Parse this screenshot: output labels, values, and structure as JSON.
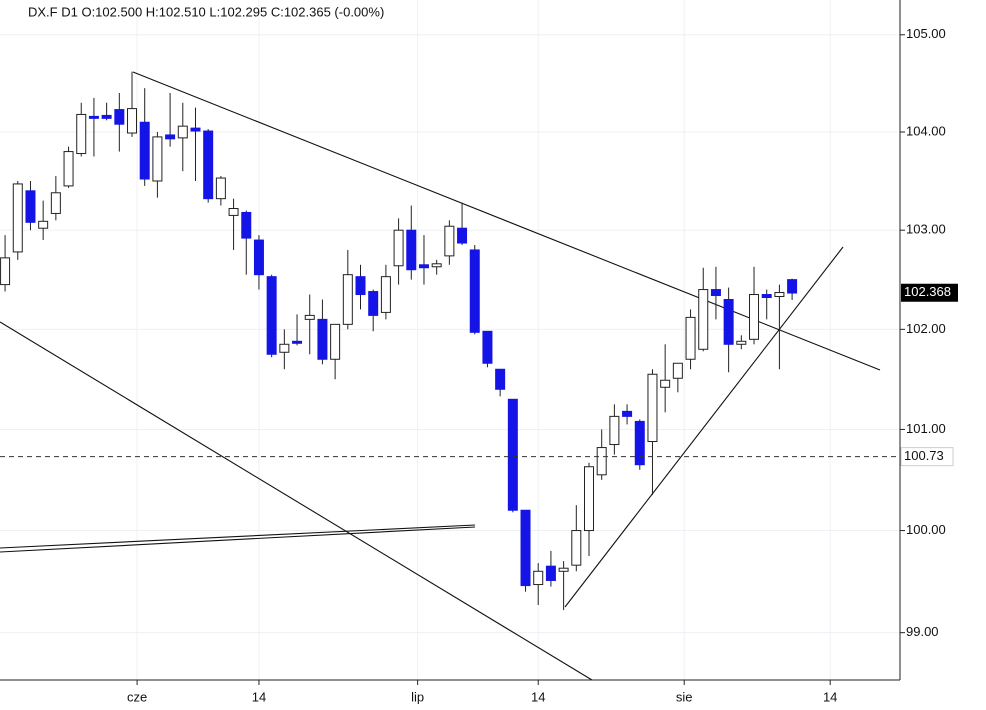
{
  "chart_data": {
    "type": "candlestick",
    "title": "DX.F  D1  O:102.500  H:102.510  L:102.295  C:102.365  (-0.00%)",
    "log_scale": true,
    "grid": true,
    "color": "#1414e6",
    "categories": [
      null,
      null,
      null,
      null,
      null,
      null,
      null,
      null,
      null,
      null,
      null,
      null,
      null,
      null,
      null,
      null,
      null,
      null,
      null,
      null,
      null,
      null,
      null,
      null,
      null,
      null,
      null,
      null,
      null,
      null,
      null,
      null,
      null,
      null,
      null,
      null,
      null,
      null,
      null,
      null,
      null,
      null,
      null,
      null,
      null,
      null,
      null,
      null,
      null,
      null,
      null,
      null,
      null,
      null,
      null,
      null,
      null,
      null,
      null,
      null,
      null,
      null,
      null
    ],
    "open": [
      102.45,
      102.78,
      103.4,
      103.02,
      103.17,
      103.45,
      103.78,
      104.16,
      104.17,
      104.23,
      103.99,
      104.1,
      103.5,
      103.97,
      103.94,
      104.04,
      104.01,
      103.32,
      103.15,
      103.18,
      102.9,
      102.53,
      101.77,
      101.88,
      102.1,
      102.1,
      101.7,
      102.05,
      102.53,
      102.38,
      102.17,
      102.64,
      103.0,
      102.65,
      102.63,
      102.74,
      103.02,
      102.8,
      101.98,
      101.6,
      101.3,
      100.2,
      99.47,
      99.65,
      99.6,
      99.66,
      100.0,
      100.55,
      100.85,
      101.18,
      101.08,
      100.88,
      101.42,
      101.51,
      101.7,
      101.8,
      102.4,
      102.3,
      101.85,
      101.9,
      102.35,
      102.33,
      102.5
    ],
    "high": [
      102.95,
      103.5,
      103.5,
      103.3,
      103.55,
      103.85,
      104.3,
      104.35,
      104.3,
      104.4,
      104.62,
      104.45,
      104.0,
      104.4,
      104.3,
      104.25,
      104.03,
      103.55,
      103.32,
      103.2,
      102.95,
      102.55,
      102.0,
      102.15,
      102.35,
      102.3,
      102.05,
      102.8,
      102.65,
      102.4,
      102.65,
      103.12,
      103.25,
      102.95,
      102.7,
      103.1,
      103.28,
      102.85,
      101.98,
      101.6,
      101.3,
      100.2,
      99.68,
      99.8,
      99.7,
      100.25,
      100.67,
      101.0,
      101.25,
      101.25,
      101.1,
      101.6,
      101.85,
      101.66,
      102.2,
      102.62,
      102.63,
      102.42,
      101.94,
      102.63,
      102.4,
      102.45,
      102.51
    ],
    "low": [
      102.38,
      102.7,
      103.0,
      102.9,
      103.1,
      103.43,
      103.75,
      103.75,
      104.12,
      103.8,
      103.95,
      103.45,
      103.33,
      103.85,
      103.6,
      103.5,
      103.28,
      103.25,
      102.8,
      102.55,
      102.4,
      101.72,
      101.6,
      101.84,
      101.75,
      101.65,
      101.5,
      102.0,
      102.2,
      101.98,
      102.1,
      102.45,
      102.5,
      102.45,
      102.55,
      102.65,
      102.85,
      101.95,
      101.62,
      101.33,
      100.18,
      99.4,
      99.27,
      99.45,
      99.22,
      99.6,
      99.75,
      100.5,
      100.75,
      101.05,
      100.6,
      100.35,
      101.17,
      101.37,
      101.6,
      101.78,
      102.1,
      101.57,
      101.8,
      101.85,
      102.1,
      101.6,
      102.295
    ],
    "close": [
      102.72,
      103.47,
      103.08,
      103.09,
      103.38,
      103.8,
      104.18,
      104.14,
      104.14,
      104.08,
      104.24,
      103.52,
      103.95,
      103.93,
      104.06,
      104.01,
      103.32,
      103.53,
      103.22,
      102.92,
      102.55,
      101.75,
      101.85,
      101.86,
      102.14,
      101.7,
      102.05,
      102.55,
      102.35,
      102.14,
      102.53,
      103.0,
      102.6,
      102.62,
      102.66,
      103.04,
      102.87,
      101.97,
      101.66,
      101.4,
      100.2,
      99.46,
      99.6,
      99.51,
      99.63,
      100.0,
      100.63,
      100.82,
      101.13,
      101.13,
      100.65,
      101.55,
      101.49,
      101.66,
      102.12,
      102.4,
      102.34,
      101.85,
      101.88,
      102.35,
      102.32,
      102.37,
      102.365
    ],
    "ylim": [
      98.54,
      105.36
    ],
    "yticks": [
      {
        "value": 99,
        "label": "99.00"
      },
      {
        "value": 100,
        "label": "100.00"
      },
      {
        "value": 101,
        "label": "101.00"
      },
      {
        "value": 102,
        "label": "102.00"
      },
      {
        "value": 103,
        "label": "103.00"
      },
      {
        "value": 104,
        "label": "104.00"
      },
      {
        "value": 105,
        "label": "105.00"
      }
    ],
    "xlim": [
      -0.4,
      70.5
    ],
    "xticks": [
      {
        "value": 10.4,
        "label": "cze"
      },
      {
        "value": 20,
        "label": "14"
      },
      {
        "value": 32.5,
        "label": "lip"
      },
      {
        "value": 42,
        "label": "14"
      },
      {
        "value": 53.5,
        "label": "sie"
      },
      {
        "value": 65,
        "label": "14"
      }
    ],
    "hline": 100.73,
    "last_price": 102.368
  }
}
